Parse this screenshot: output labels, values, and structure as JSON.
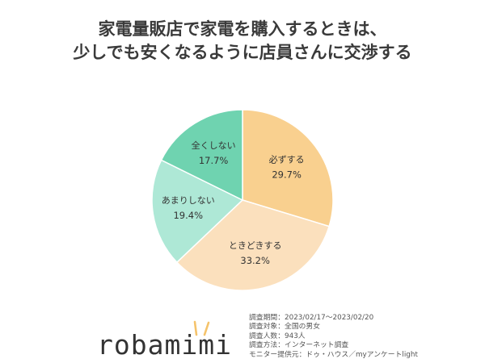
{
  "title_lines": [
    "家電量販店で家電を購入するときは、",
    "少しでも安くなるように店員さんに交渉する"
  ],
  "chart_data": {
    "type": "pie",
    "title": "家電量販店で家電を購入するときは、少しでも安くなるように店員さんに交渉する",
    "slices": [
      {
        "label": "必ずする",
        "value": 29.7,
        "value_label": "29.7%",
        "color": "#f9d08f"
      },
      {
        "label": "ときどきする",
        "value": 33.2,
        "value_label": "33.2%",
        "color": "#fbe0bd"
      },
      {
        "label": "あまりしない",
        "value": 19.4,
        "value_label": "19.4%",
        "color": "#aee8d6"
      },
      {
        "label": "全くしない",
        "value": 17.7,
        "value_label": "17.7%",
        "color": "#6fd3b0"
      }
    ],
    "start_angle_deg": 0,
    "direction": "clockwise"
  },
  "survey_info": [
    {
      "key": "調査期間",
      "value": "2023/02/17〜2023/02/20"
    },
    {
      "key": "調査対象",
      "value": "全国の男女"
    },
    {
      "key": "調査人数",
      "value": "943人"
    },
    {
      "key": "調査方法",
      "value": "インターネット調査"
    },
    {
      "key": "モニター提供元",
      "value": "ドゥ・ハウス／myアンケートlight"
    }
  ],
  "logo": {
    "text": "robamimi",
    "accent_color": "#f5c36b"
  }
}
